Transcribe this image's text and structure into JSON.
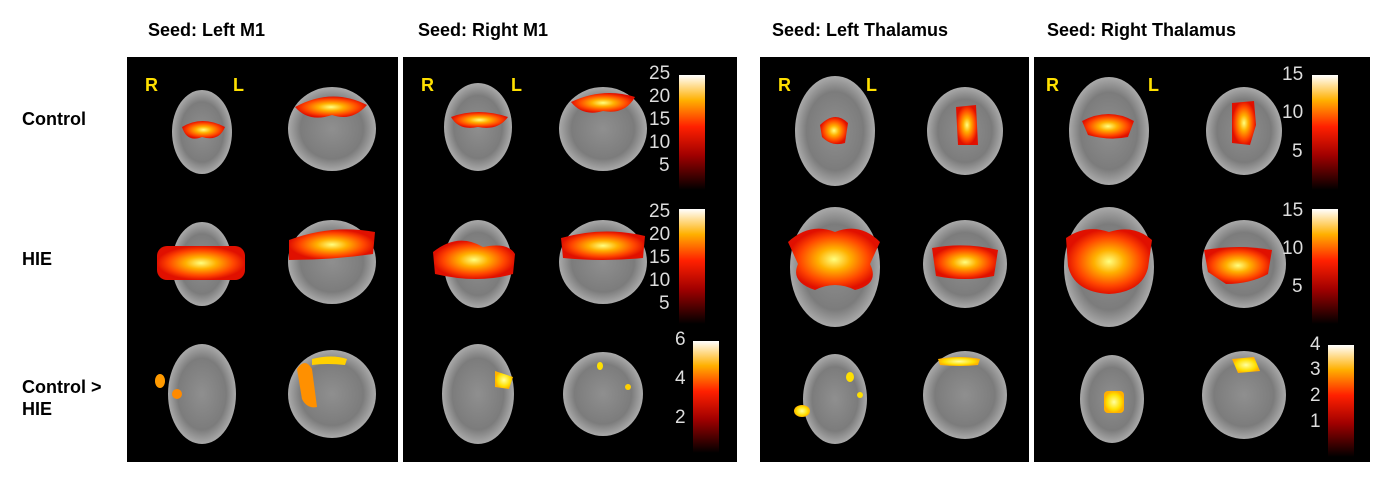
{
  "seeds": [
    "Seed: Left M1",
    "Seed: Right M1",
    "Seed: Left Thalamus",
    "Seed: Right Thalamus"
  ],
  "rows": [
    "Control",
    "HIE",
    "Control >\nHIE"
  ],
  "orientation": {
    "right": "R",
    "left": "L"
  },
  "colorbars": {
    "m1": {
      "control": [
        "25",
        "20",
        "15",
        "10",
        "5"
      ],
      "hie": [
        "25",
        "20",
        "15",
        "10",
        "5"
      ],
      "contrast": [
        "6",
        "4",
        "2"
      ]
    },
    "thalamus": {
      "control": [
        "15",
        "10",
        "5"
      ],
      "hie": [
        "15",
        "10",
        "5"
      ],
      "contrast": [
        "4",
        "3",
        "2",
        "1"
      ]
    }
  },
  "colors": {
    "background": "#000000",
    "brain": "#9a9a9a",
    "activation_hot": "#ff3300",
    "activation_peak": "#ffff66",
    "orientation_label": "#ffe000"
  }
}
